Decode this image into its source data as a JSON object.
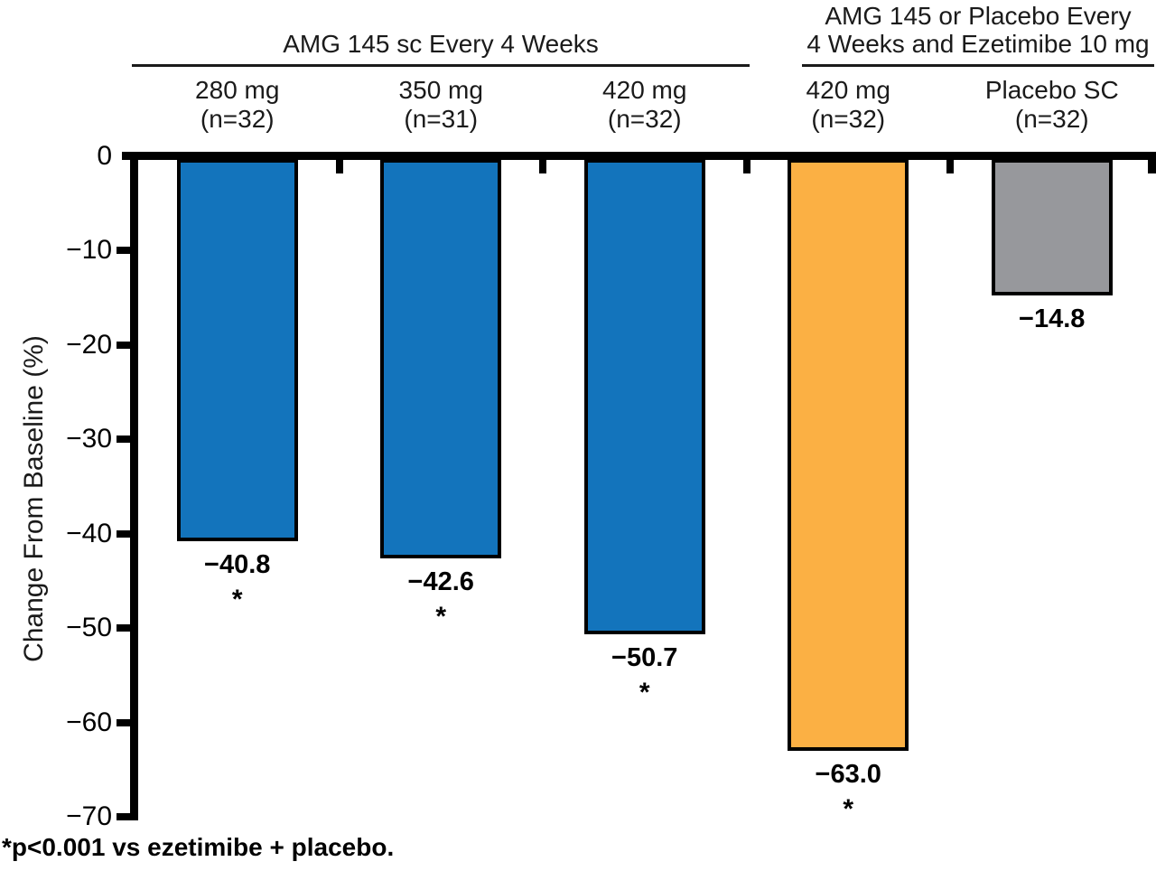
{
  "chart_data": {
    "type": "bar",
    "orientation": "vertical",
    "ylabel": "Change From Baseline (%)",
    "ylim": [
      -70,
      0
    ],
    "grid": false,
    "legend": "none",
    "yticks": [
      {
        "v": 0,
        "label": "0"
      },
      {
        "v": -10,
        "label": "−10"
      },
      {
        "v": -20,
        "label": "−20"
      },
      {
        "v": -30,
        "label": "−30"
      },
      {
        "v": -40,
        "label": "−40"
      },
      {
        "v": -50,
        "label": "−50"
      },
      {
        "v": -60,
        "label": "−60"
      },
      {
        "v": -70,
        "label": "−70"
      }
    ],
    "groups": [
      {
        "lines": [
          "AMG 145 sc Every 4 Weeks"
        ]
      },
      {
        "lines": [
          "AMG 145 or Placebo Every",
          "4 Weeks and Ezetimibe 10 mg"
        ]
      }
    ],
    "categories": [
      {
        "dose": "280 mg",
        "n": "(n=32)",
        "value": -40.8,
        "value_label": "−40.8",
        "significant": true,
        "color": "#1374BC",
        "group": 0
      },
      {
        "dose": "350 mg",
        "n": "(n=31)",
        "value": -42.6,
        "value_label": "−42.6",
        "significant": true,
        "color": "#1374BC",
        "group": 0
      },
      {
        "dose": "420 mg",
        "n": "(n=32)",
        "value": -50.7,
        "value_label": "−50.7",
        "significant": true,
        "color": "#1374BC",
        "group": 0
      },
      {
        "dose": "420 mg",
        "n": "(n=32)",
        "value": -63.0,
        "value_label": "−63.0",
        "significant": true,
        "color": "#FBB044",
        "group": 1
      },
      {
        "dose": "Placebo SC",
        "n": "(n=32)",
        "value": -14.8,
        "value_label": "−14.8",
        "significant": false,
        "color": "#97989C",
        "group": 1
      }
    ],
    "sig_marker": "*",
    "footnote": "*p<0.001 vs ezetimibe + placebo.",
    "colors": {
      "amg145_bar": "#1374BC",
      "amg145_ezetimibe_bar": "#FBB044",
      "placebo_bar": "#97989C",
      "axis": "#000000"
    }
  }
}
